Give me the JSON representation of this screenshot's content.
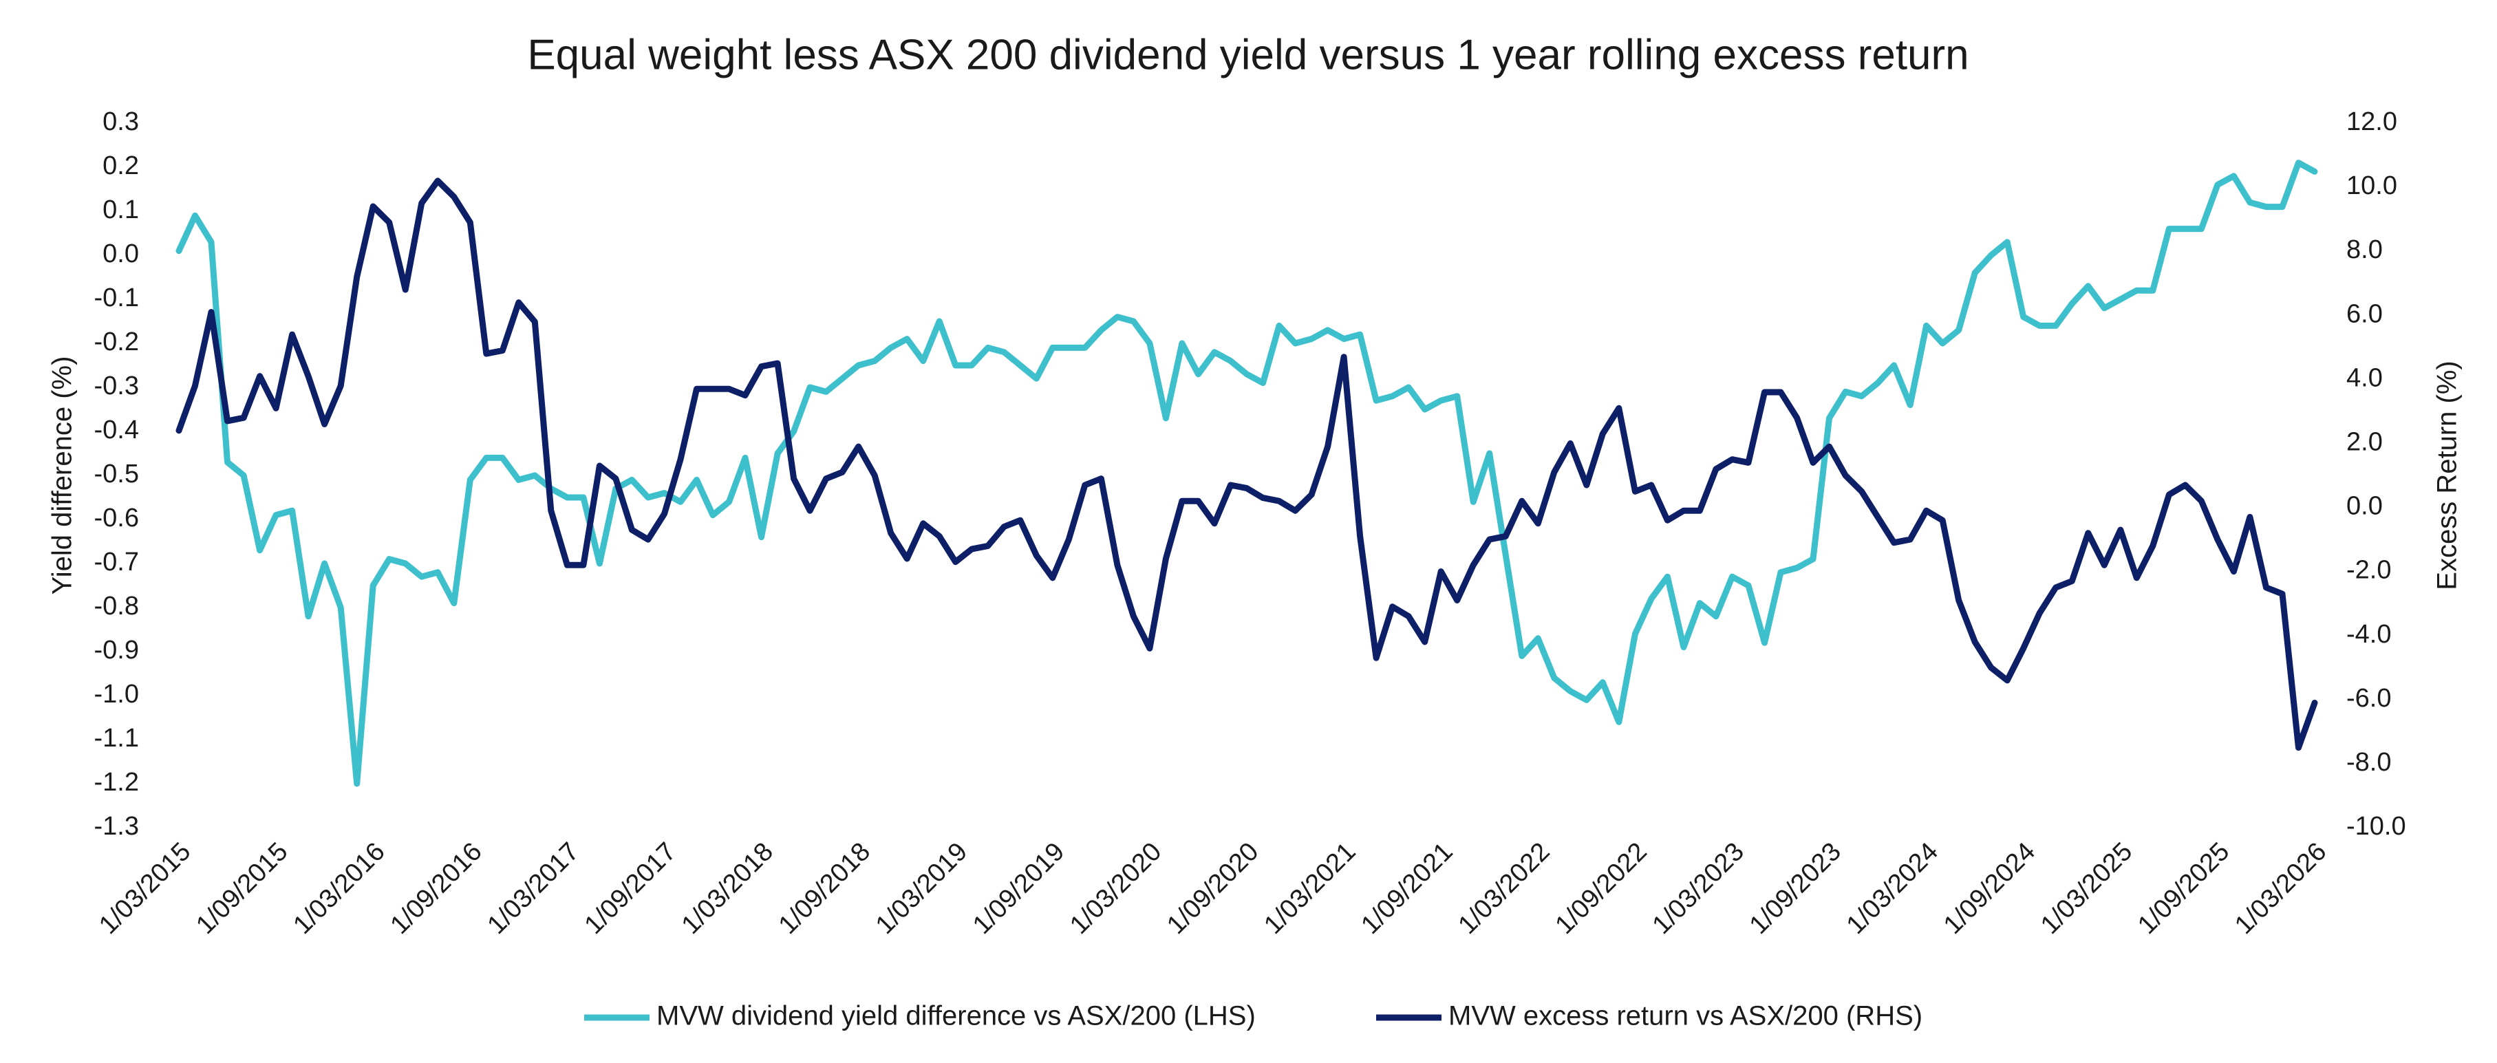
{
  "chart_data": {
    "type": "line",
    "title": "Equal weight less ASX 200 dividend yield versus 1 year rolling excess return",
    "y_label": "Yield difference (%)",
    "y2_label": "Excess Return (%)",
    "legend": "bottom",
    "grid": false,
    "categories": [
      "1/03/2015",
      null,
      null,
      null,
      null,
      null,
      "1/09/2015",
      null,
      null,
      null,
      null,
      null,
      "1/03/2016",
      null,
      null,
      null,
      null,
      null,
      "1/09/2016",
      null,
      null,
      null,
      null,
      null,
      "1/03/2017",
      null,
      null,
      null,
      null,
      null,
      "1/09/2017",
      null,
      null,
      null,
      null,
      null,
      "1/03/2018",
      null,
      null,
      null,
      null,
      null,
      "1/09/2018",
      null,
      null,
      null,
      null,
      null,
      "1/03/2019",
      null,
      null,
      null,
      null,
      null,
      "1/09/2019",
      null,
      null,
      null,
      null,
      null,
      "1/03/2020",
      null,
      null,
      null,
      null,
      null,
      "1/09/2020",
      null,
      null,
      null,
      null,
      null,
      "1/03/2021",
      null,
      null,
      null,
      null,
      null,
      "1/09/2021",
      null,
      null,
      null,
      null,
      null,
      "1/03/2022",
      null,
      null,
      null,
      null,
      null,
      "1/09/2022",
      null,
      null,
      null,
      null,
      null,
      "1/03/2023",
      null,
      null,
      null,
      null,
      null,
      "1/09/2023",
      null,
      null,
      null,
      null,
      null,
      "1/03/2024",
      null,
      null,
      null,
      null,
      null,
      "1/09/2024",
      null,
      null,
      null,
      null,
      null,
      "1/03/2025",
      null,
      null,
      null,
      null,
      null,
      "1/09/2025",
      null,
      null,
      null,
      null,
      null,
      "1/03/2026"
    ],
    "ylim": [
      -1.3,
      0.3
    ],
    "yticks": [
      0.3,
      0.2,
      0.1,
      {
        "value": 0,
        "label": "0.0"
      },
      -0.1,
      -0.2,
      -0.3,
      -0.4,
      -0.5,
      -0.6,
      -0.7,
      -0.8,
      -0.9,
      {
        "value": -1,
        "label": "-1.0"
      },
      -1.1,
      -1.2,
      -1.3
    ],
    "y2lim": [
      -10,
      12
    ],
    "y2ticks": [
      {
        "value": 12,
        "label": "12.0"
      },
      {
        "value": 10,
        "label": "10.0"
      },
      {
        "value": 8,
        "label": "8.0"
      },
      {
        "value": 6,
        "label": "6.0"
      },
      {
        "value": 4,
        "label": "4.0"
      },
      {
        "value": 2,
        "label": "2.0"
      },
      {
        "value": 0,
        "label": "0.0"
      },
      {
        "value": -2,
        "label": "-2.0"
      },
      {
        "value": -4,
        "label": "-4.0"
      },
      {
        "value": -6,
        "label": "-6.0"
      },
      {
        "value": -8,
        "label": "-8.0"
      },
      {
        "value": -10,
        "label": "-10.0"
      }
    ],
    "series": [
      {
        "name": "MVW dividend yield difference vs ASX/200 (LHS)",
        "color": "#3dbfcc",
        "axis": "y",
        "values": [
          0.01,
          0.09,
          0.03,
          -0.47,
          -0.5,
          -0.67,
          -0.59,
          -0.58,
          -0.82,
          -0.7,
          -0.8,
          -1.2,
          -0.75,
          -0.69,
          -0.7,
          -0.73,
          -0.72,
          -0.79,
          -0.51,
          -0.46,
          -0.46,
          -0.51,
          -0.5,
          -0.53,
          -0.55,
          -0.55,
          -0.7,
          -0.53,
          -0.51,
          -0.55,
          -0.54,
          -0.56,
          -0.51,
          -0.59,
          -0.56,
          -0.46,
          -0.64,
          -0.45,
          -0.4,
          -0.3,
          -0.31,
          -0.28,
          -0.25,
          -0.24,
          -0.21,
          -0.19,
          -0.24,
          -0.15,
          -0.25,
          -0.25,
          -0.21,
          -0.22,
          -0.25,
          -0.28,
          -0.21,
          -0.21,
          -0.21,
          -0.17,
          -0.14,
          -0.15,
          -0.2,
          -0.37,
          -0.2,
          -0.27,
          -0.22,
          -0.24,
          -0.27,
          -0.29,
          -0.16,
          -0.2,
          -0.19,
          -0.17,
          -0.19,
          -0.18,
          -0.33,
          -0.32,
          -0.3,
          -0.35,
          -0.33,
          -0.32,
          -0.56,
          -0.45,
          -0.68,
          -0.91,
          -0.87,
          -0.96,
          -0.99,
          -1.01,
          -0.97,
          -1.06,
          -0.86,
          -0.78,
          -0.73,
          -0.89,
          -0.79,
          -0.82,
          -0.73,
          -0.75,
          -0.88,
          -0.72,
          -0.71,
          -0.69,
          -0.37,
          -0.31,
          -0.32,
          -0.29,
          -0.25,
          -0.34,
          -0.16,
          -0.2,
          -0.17,
          -0.04,
          0,
          0.03,
          -0.14,
          -0.16,
          -0.16,
          -0.11,
          -0.07,
          -0.12,
          -0.1,
          -0.08,
          -0.08,
          0.06,
          0.06,
          0.06,
          0.16,
          0.18,
          0.12,
          0.11,
          0.11,
          0.21,
          0.19
        ]
      },
      {
        "name": "MVW excess return vs ASX/200 (RHS)",
        "color": "#0d1f66",
        "axis": "y2",
        "values": [
          2.4,
          3.8,
          6.1,
          2.7,
          2.8,
          4.1,
          3.1,
          5.4,
          4.1,
          2.6,
          3.8,
          7.2,
          9.4,
          8.9,
          6.8,
          9.5,
          10.2,
          9.7,
          8.9,
          4.8,
          4.9,
          6.4,
          5.8,
          -0.1,
          -1.8,
          -1.8,
          1.3,
          0.9,
          -0.7,
          -1,
          -0.2,
          1.5,
          3.7,
          3.7,
          3.7,
          3.5,
          4.4,
          4.5,
          0.9,
          -0.1,
          0.9,
          1.1,
          1.9,
          1,
          -0.8,
          -1.6,
          -0.5,
          -0.9,
          -1.7,
          -1.3,
          -1.2,
          -0.6,
          -0.4,
          -1.5,
          -2.2,
          -1,
          0.7,
          0.9,
          -1.8,
          -3.4,
          -4.4,
          -1.6,
          0.2,
          0.2,
          -0.5,
          0.7,
          0.6,
          0.3,
          0.2,
          -0.1,
          0.4,
          1.9,
          4.7,
          -0.9,
          -4.7,
          -3.1,
          -3.4,
          -4.2,
          -2,
          -2.9,
          -1.8,
          -1,
          -0.9,
          0.2,
          -0.5,
          1.1,
          2,
          0.7,
          2.3,
          3.1,
          0.5,
          0.7,
          -0.4,
          -0.1,
          -0.1,
          1.2,
          1.5,
          1.4,
          3.6,
          3.6,
          2.8,
          1.4,
          1.9,
          1,
          0.5,
          -0.3,
          -1.1,
          -1,
          -0.1,
          -0.4,
          -2.9,
          -4.2,
          -5,
          -5.4,
          -4.4,
          -3.3,
          -2.5,
          -2.3,
          -0.8,
          -1.8,
          -0.7,
          -2.2,
          -1.2,
          0.4,
          0.7,
          0.2,
          -1,
          -2,
          -0.3,
          -2.5,
          -2.7,
          -7.5,
          -6.1
        ]
      }
    ]
  }
}
